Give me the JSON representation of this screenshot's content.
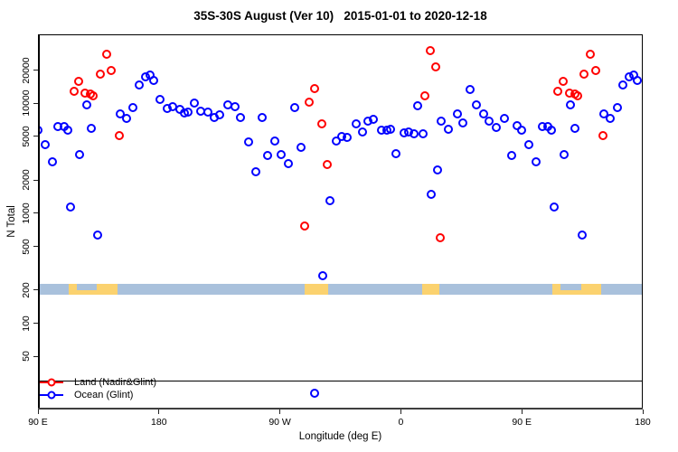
{
  "title": "35S-30S August (Ver 10)   2015-01-01 to 2020-12-18",
  "chart_data": {
    "type": "scatter",
    "title": "35S-30S August (Ver 10)   2015-01-01 to 2020-12-18",
    "xlabel": "Longitude (deg E)",
    "ylabel": "N Total",
    "x_axis": {
      "note": "longitude axis spans 450 deg; the 90E-180 segment is drawn at both ends (wrapped axis)",
      "range_unwrapped": [
        90,
        540
      ],
      "ticks": [
        {
          "pos": 90,
          "label": "90 E"
        },
        {
          "pos": 180,
          "label": "180"
        },
        {
          "pos": 270,
          "label": "90 W"
        },
        {
          "pos": 360,
          "label": "0"
        },
        {
          "pos": 450,
          "label": "90 E"
        },
        {
          "pos": 540,
          "label": "180"
        }
      ]
    },
    "y_axis": {
      "scale": "log",
      "ylim": [
        16.4,
        42400
      ],
      "ticks": [
        50,
        100,
        200,
        500,
        1000,
        2000,
        5000,
        10000,
        20000
      ],
      "grid": false
    },
    "reference_line": {
      "n": 30,
      "color": "#000000"
    },
    "land_ocean_band": {
      "description": "map strip of the 35S-30S latitude belt: ocean in light blue, land in yellow",
      "n_top": 228,
      "n_bottom": 182,
      "ocean_color": "#a9c1dc",
      "land_color": "#fbd26f",
      "land_patches_lon": [
        [
          113,
          149
        ],
        [
          -71.3,
          -53.8
        ],
        [
          16.1,
          28.4
        ]
      ],
      "ocean_notches_lon": [
        [
          119,
          134
        ]
      ]
    },
    "series": [
      {
        "name": "Land (Nadir&Glint)",
        "color": "#ff0000",
        "points": [
          [
            141.0,
            28000
          ],
          [
            144.8,
            19900
          ],
          [
            136.5,
            18300
          ],
          [
            120.5,
            15900
          ],
          [
            116.7,
            12900
          ],
          [
            125.2,
            12400
          ],
          [
            129.3,
            12200
          ],
          [
            131.3,
            11800
          ],
          [
            150.4,
            5120
          ],
          [
            -64.1,
            13600
          ],
          [
            -68.1,
            10260
          ],
          [
            -58.7,
            6460
          ],
          [
            -54.6,
            2760
          ],
          [
            -71.9,
            762
          ],
          [
            21.7,
            30000
          ],
          [
            25.7,
            21400
          ],
          [
            17.9,
            11800
          ],
          [
            29.1,
            600
          ]
        ]
      },
      {
        "name": "Ocean (Glint)",
        "color": "#0000ff",
        "points": [
          [
            90.2,
            5740
          ],
          [
            95.4,
            4240
          ],
          [
            100.6,
            2940
          ],
          [
            105.0,
            6190
          ],
          [
            109.3,
            6110
          ],
          [
            112.2,
            5740
          ],
          [
            114.0,
            1140
          ],
          [
            121.2,
            3400
          ],
          [
            126.4,
            9700
          ],
          [
            129.5,
            5930
          ],
          [
            134.7,
            630
          ],
          [
            151.1,
            8070
          ],
          [
            156.0,
            7240
          ],
          [
            160.9,
            9200
          ],
          [
            165.0,
            14700
          ],
          [
            170.2,
            17500
          ],
          [
            173.5,
            18100
          ],
          [
            175.8,
            16200
          ],
          [
            -179.3,
            10900
          ],
          [
            -173.7,
            9000
          ],
          [
            -169.6,
            9400
          ],
          [
            -164.7,
            8750
          ],
          [
            -161.3,
            8200
          ],
          [
            -158.4,
            8370
          ],
          [
            -153.9,
            10100
          ],
          [
            -148.9,
            8490
          ],
          [
            -143.8,
            8330
          ],
          [
            -138.8,
            7480
          ],
          [
            -135.1,
            7870
          ],
          [
            -128.7,
            9750
          ],
          [
            -123.6,
            9380
          ],
          [
            -119.1,
            7480
          ],
          [
            -113.0,
            4430
          ],
          [
            -108.1,
            2370
          ],
          [
            -103.4,
            7380
          ],
          [
            -99.1,
            3330
          ],
          [
            -94.0,
            4570
          ],
          [
            -88.8,
            3400
          ],
          [
            -83.4,
            2850
          ],
          [
            -78.9,
            9200
          ],
          [
            -74.2,
            3980
          ],
          [
            -52.8,
            1300
          ],
          [
            -58.3,
            268
          ],
          [
            -64.1,
            23
          ],
          [
            -47.9,
            4510
          ],
          [
            -43.8,
            5010
          ],
          [
            -40.0,
            4900
          ],
          [
            -33.3,
            6500
          ],
          [
            -28.8,
            5440
          ],
          [
            -24.8,
            6890
          ],
          [
            -20.3,
            7150
          ],
          [
            -14.2,
            5730
          ],
          [
            -10.2,
            5730
          ],
          [
            -7.5,
            5860
          ],
          [
            -3.4,
            3510
          ],
          [
            2.2,
            5350
          ],
          [
            6.0,
            5520
          ],
          [
            10.0,
            5280
          ],
          [
            12.3,
            9420
          ],
          [
            16.8,
            5280
          ],
          [
            22.4,
            1480
          ],
          [
            27.3,
            2480
          ],
          [
            30.0,
            6930
          ],
          [
            35.2,
            5810
          ],
          [
            41.9,
            8070
          ],
          [
            46.4,
            6580
          ],
          [
            51.8,
            13400
          ],
          [
            56.5,
            9730
          ],
          [
            61.4,
            8070
          ],
          [
            65.9,
            6890
          ],
          [
            70.7,
            6000
          ],
          [
            77.1,
            7340
          ],
          [
            82.3,
            3330
          ],
          [
            86.8,
            6270
          ]
        ]
      }
    ],
    "legend_position": "bottom-left"
  }
}
